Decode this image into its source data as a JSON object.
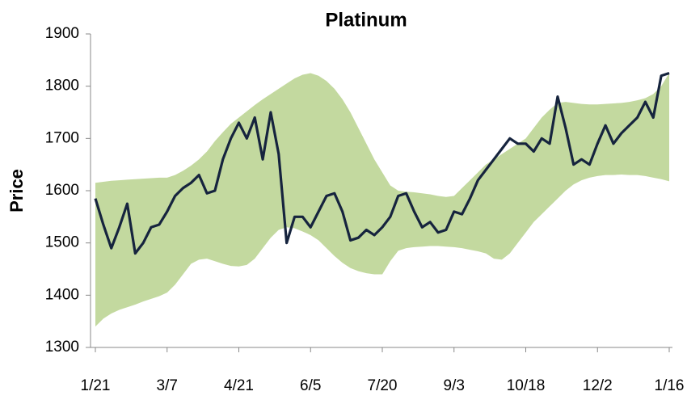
{
  "chart_data": {
    "type": "line",
    "title": "Platinum",
    "y_label": "Price",
    "categories": [
      "1/21",
      null,
      null,
      null,
      null,
      null,
      null,
      null,
      null,
      "3/7",
      null,
      null,
      null,
      null,
      null,
      null,
      null,
      null,
      "4/21",
      null,
      null,
      null,
      null,
      null,
      null,
      null,
      null,
      "6/5",
      null,
      null,
      null,
      null,
      null,
      null,
      null,
      null,
      "7/20",
      null,
      null,
      null,
      null,
      null,
      null,
      null,
      null,
      "9/3",
      null,
      null,
      null,
      null,
      null,
      null,
      null,
      null,
      "10/18",
      null,
      null,
      null,
      null,
      null,
      null,
      null,
      null,
      "12/2",
      null,
      null,
      null,
      null,
      null,
      null,
      null,
      null,
      "1/16"
    ],
    "series": [
      {
        "color": "#16243e",
        "values": [
          1585,
          1535,
          1490,
          1530,
          1575,
          1480,
          1500,
          1530,
          1535,
          1560,
          1590,
          1605,
          1615,
          1630,
          1595,
          1600,
          1660,
          1700,
          1730,
          1700,
          1740,
          1660,
          1750,
          1670,
          1500,
          1550,
          1550,
          1530,
          1560,
          1590,
          1595,
          1560,
          1505,
          1510,
          1525,
          1515,
          1530,
          1550,
          1590,
          1595,
          1560,
          1530,
          1540,
          1520,
          1525,
          1560,
          1555,
          1585,
          1620,
          1640,
          1660,
          1680,
          1700,
          1690,
          1690,
          1675,
          1700,
          1690,
          1780,
          1720,
          1650,
          1660,
          1650,
          1690,
          1725,
          1690,
          1710,
          1725,
          1740,
          1770,
          1740,
          1820,
          1825
        ]
      }
    ],
    "band": {
      "color": "#c3d99f",
      "upper": [
        1615,
        1617,
        1619,
        1620,
        1621,
        1622,
        1623,
        1624,
        1625,
        1625,
        1630,
        1638,
        1648,
        1660,
        1675,
        1695,
        1712,
        1728,
        1740,
        1752,
        1764,
        1775,
        1785,
        1795,
        1805,
        1815,
        1822,
        1825,
        1820,
        1810,
        1795,
        1775,
        1750,
        1720,
        1690,
        1660,
        1635,
        1610,
        1600,
        1598,
        1597,
        1595,
        1593,
        1590,
        1588,
        1590,
        1605,
        1620,
        1635,
        1650,
        1660,
        1670,
        1680,
        1690,
        1700,
        1720,
        1740,
        1755,
        1768,
        1770,
        1768,
        1766,
        1765,
        1765,
        1766,
        1767,
        1768,
        1770,
        1773,
        1777,
        1785,
        1800,
        1825
      ],
      "lower": [
        1340,
        1355,
        1365,
        1372,
        1377,
        1382,
        1388,
        1393,
        1398,
        1405,
        1420,
        1440,
        1460,
        1468,
        1470,
        1465,
        1460,
        1456,
        1455,
        1458,
        1470,
        1490,
        1510,
        1525,
        1530,
        1528,
        1522,
        1515,
        1505,
        1490,
        1475,
        1462,
        1452,
        1446,
        1442,
        1440,
        1440,
        1465,
        1485,
        1490,
        1492,
        1493,
        1494,
        1494,
        1493,
        1492,
        1490,
        1487,
        1484,
        1480,
        1470,
        1468,
        1480,
        1500,
        1520,
        1540,
        1555,
        1570,
        1585,
        1600,
        1612,
        1620,
        1625,
        1628,
        1630,
        1630,
        1631,
        1630,
        1630,
        1628,
        1625,
        1622,
        1618
      ]
    },
    "ylim": [
      1300,
      1900
    ],
    "yticks": [
      1300,
      1400,
      1500,
      1600,
      1700,
      1800,
      1900
    ],
    "grid": false
  }
}
